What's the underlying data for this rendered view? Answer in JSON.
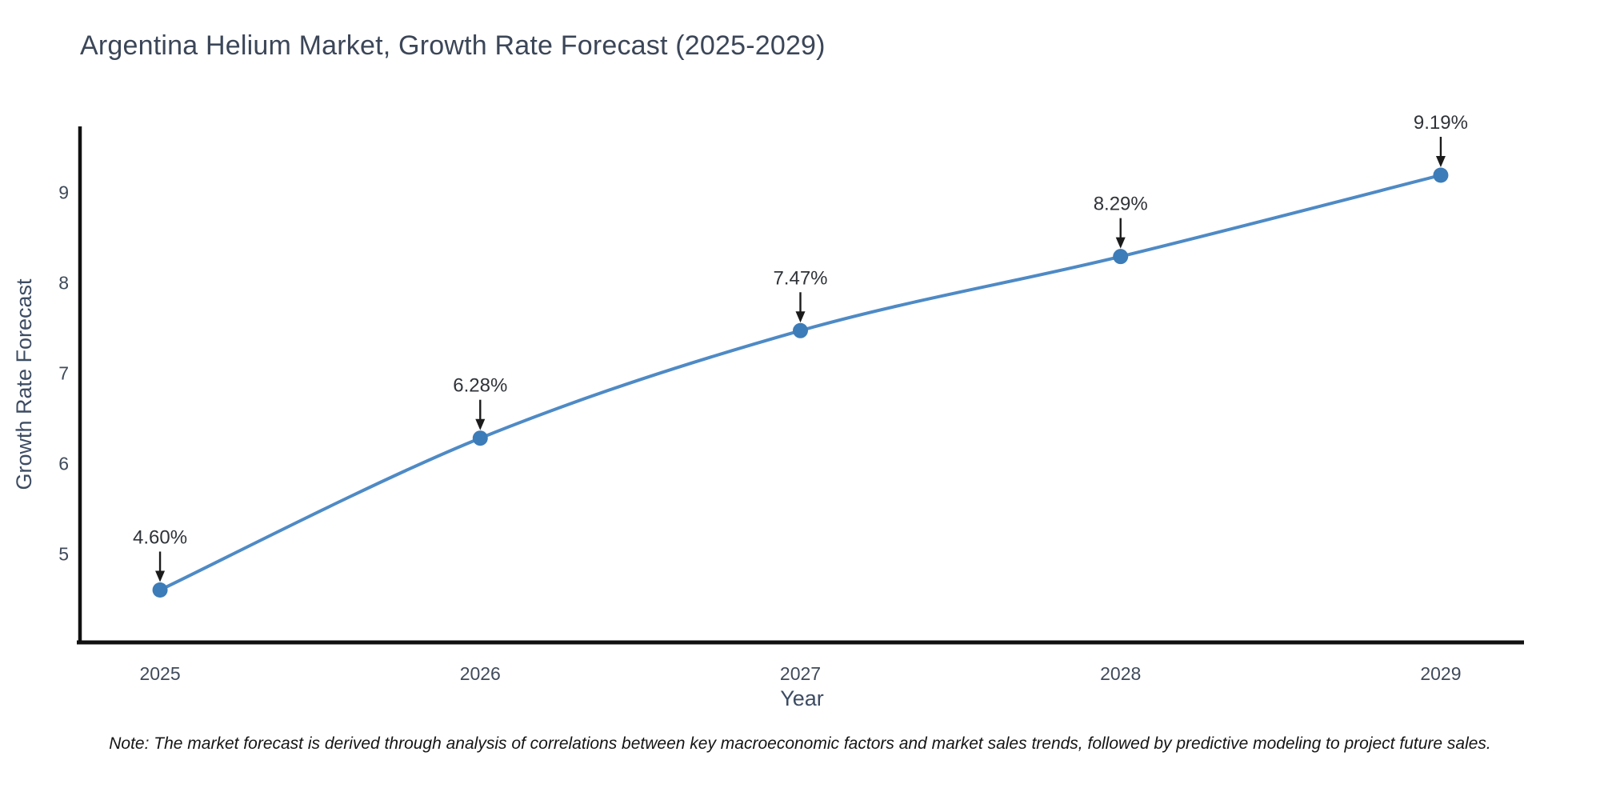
{
  "title": "Argentina Helium Market, Growth Rate Forecast (2025-2029)",
  "note": "Note: The market forecast is derived through analysis of correlations between key macroeconomic factors and market sales trends, followed by predictive modeling to project future sales.",
  "chart_data": {
    "type": "line",
    "title": "Argentina Helium Market, Growth Rate Forecast (2025-2029)",
    "xlabel": "Year",
    "ylabel": "Growth Rate Forecast",
    "x": [
      2025,
      2026,
      2027,
      2028,
      2029
    ],
    "series": [
      {
        "name": "Growth Rate Forecast",
        "values": [
          4.6,
          6.28,
          7.47,
          8.29,
          9.19
        ]
      }
    ],
    "point_labels": [
      "4.60%",
      "6.28%",
      "7.47%",
      "8.29%",
      "9.19%"
    ],
    "xticks": [
      "2025",
      "2026",
      "2027",
      "2028",
      "2029"
    ],
    "yticks": [
      "5",
      "6",
      "7",
      "8",
      "9"
    ],
    "ytick_values": [
      5,
      6,
      7,
      8,
      9
    ],
    "xlim": [
      2024.75,
      2029.26
    ],
    "ylim": [
      4.02,
      9.73
    ],
    "grid": false,
    "legend_position": "none",
    "line_shape": "spline",
    "colors": {
      "line": "#4e8ac5",
      "marker": "#3c7cb8",
      "axis": "#111111",
      "tick_label": "#3f4a5a",
      "axis_title": "#3d4c63",
      "annotation_text": "#2f3338",
      "annotation_arrow": "#1b1b1b",
      "background": "#ffffff"
    }
  }
}
